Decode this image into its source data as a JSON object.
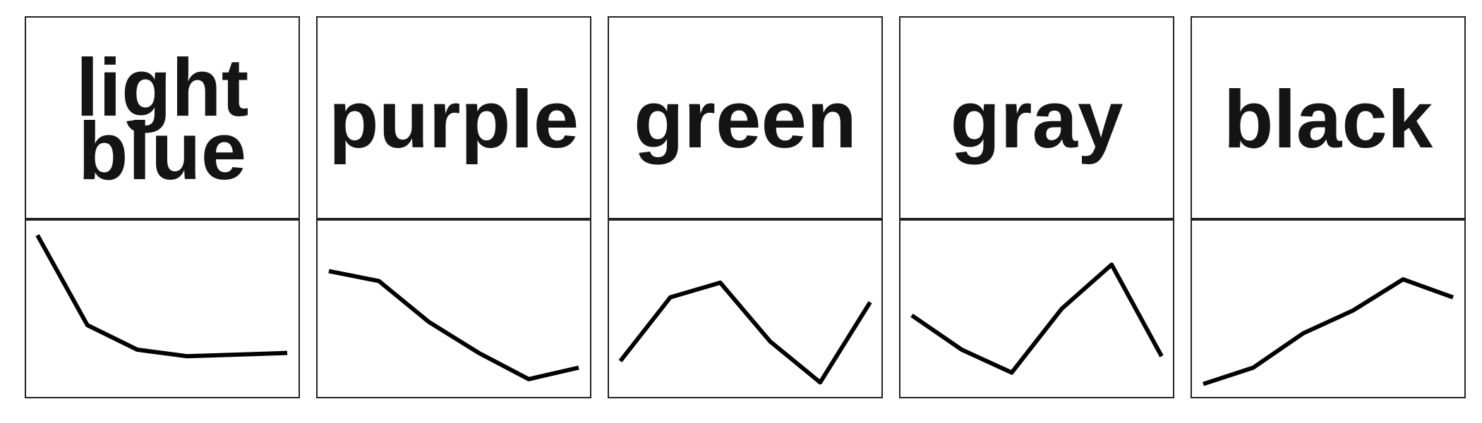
{
  "chart_data": [
    {
      "type": "line",
      "title": "light blue",
      "title_lines": [
        "light",
        "blue"
      ],
      "x": [
        1,
        2,
        3,
        4,
        5,
        6
      ],
      "values": [
        0.95,
        0.4,
        0.25,
        0.21,
        0.22,
        0.23
      ],
      "ylim": [
        0,
        1
      ],
      "color": "#000000",
      "grid": false
    },
    {
      "type": "line",
      "title": "purple",
      "title_lines": [
        "purple"
      ],
      "x": [
        1,
        2,
        3,
        4,
        5,
        6
      ],
      "values": [
        0.73,
        0.67,
        0.42,
        0.23,
        0.07,
        0.14
      ],
      "ylim": [
        0,
        1
      ],
      "color": "#000000",
      "grid": false
    },
    {
      "type": "line",
      "title": "green",
      "title_lines": [
        "green"
      ],
      "x": [
        1,
        2,
        3,
        4,
        5,
        6
      ],
      "values": [
        0.18,
        0.57,
        0.66,
        0.3,
        0.05,
        0.54
      ],
      "ylim": [
        0,
        1
      ],
      "color": "#000000",
      "grid": false
    },
    {
      "type": "line",
      "title": "gray",
      "title_lines": [
        "gray"
      ],
      "x": [
        1,
        2,
        3,
        4,
        5,
        6
      ],
      "values": [
        0.46,
        0.25,
        0.11,
        0.5,
        0.77,
        0.21
      ],
      "ylim": [
        0,
        1
      ],
      "color": "#000000",
      "grid": false
    },
    {
      "type": "line",
      "title": "black",
      "title_lines": [
        "black"
      ],
      "x": [
        1,
        2,
        3,
        4,
        5,
        6
      ],
      "values": [
        0.04,
        0.14,
        0.35,
        0.49,
        0.68,
        0.57
      ],
      "ylim": [
        0,
        1
      ],
      "color": "#000000",
      "grid": false
    }
  ]
}
